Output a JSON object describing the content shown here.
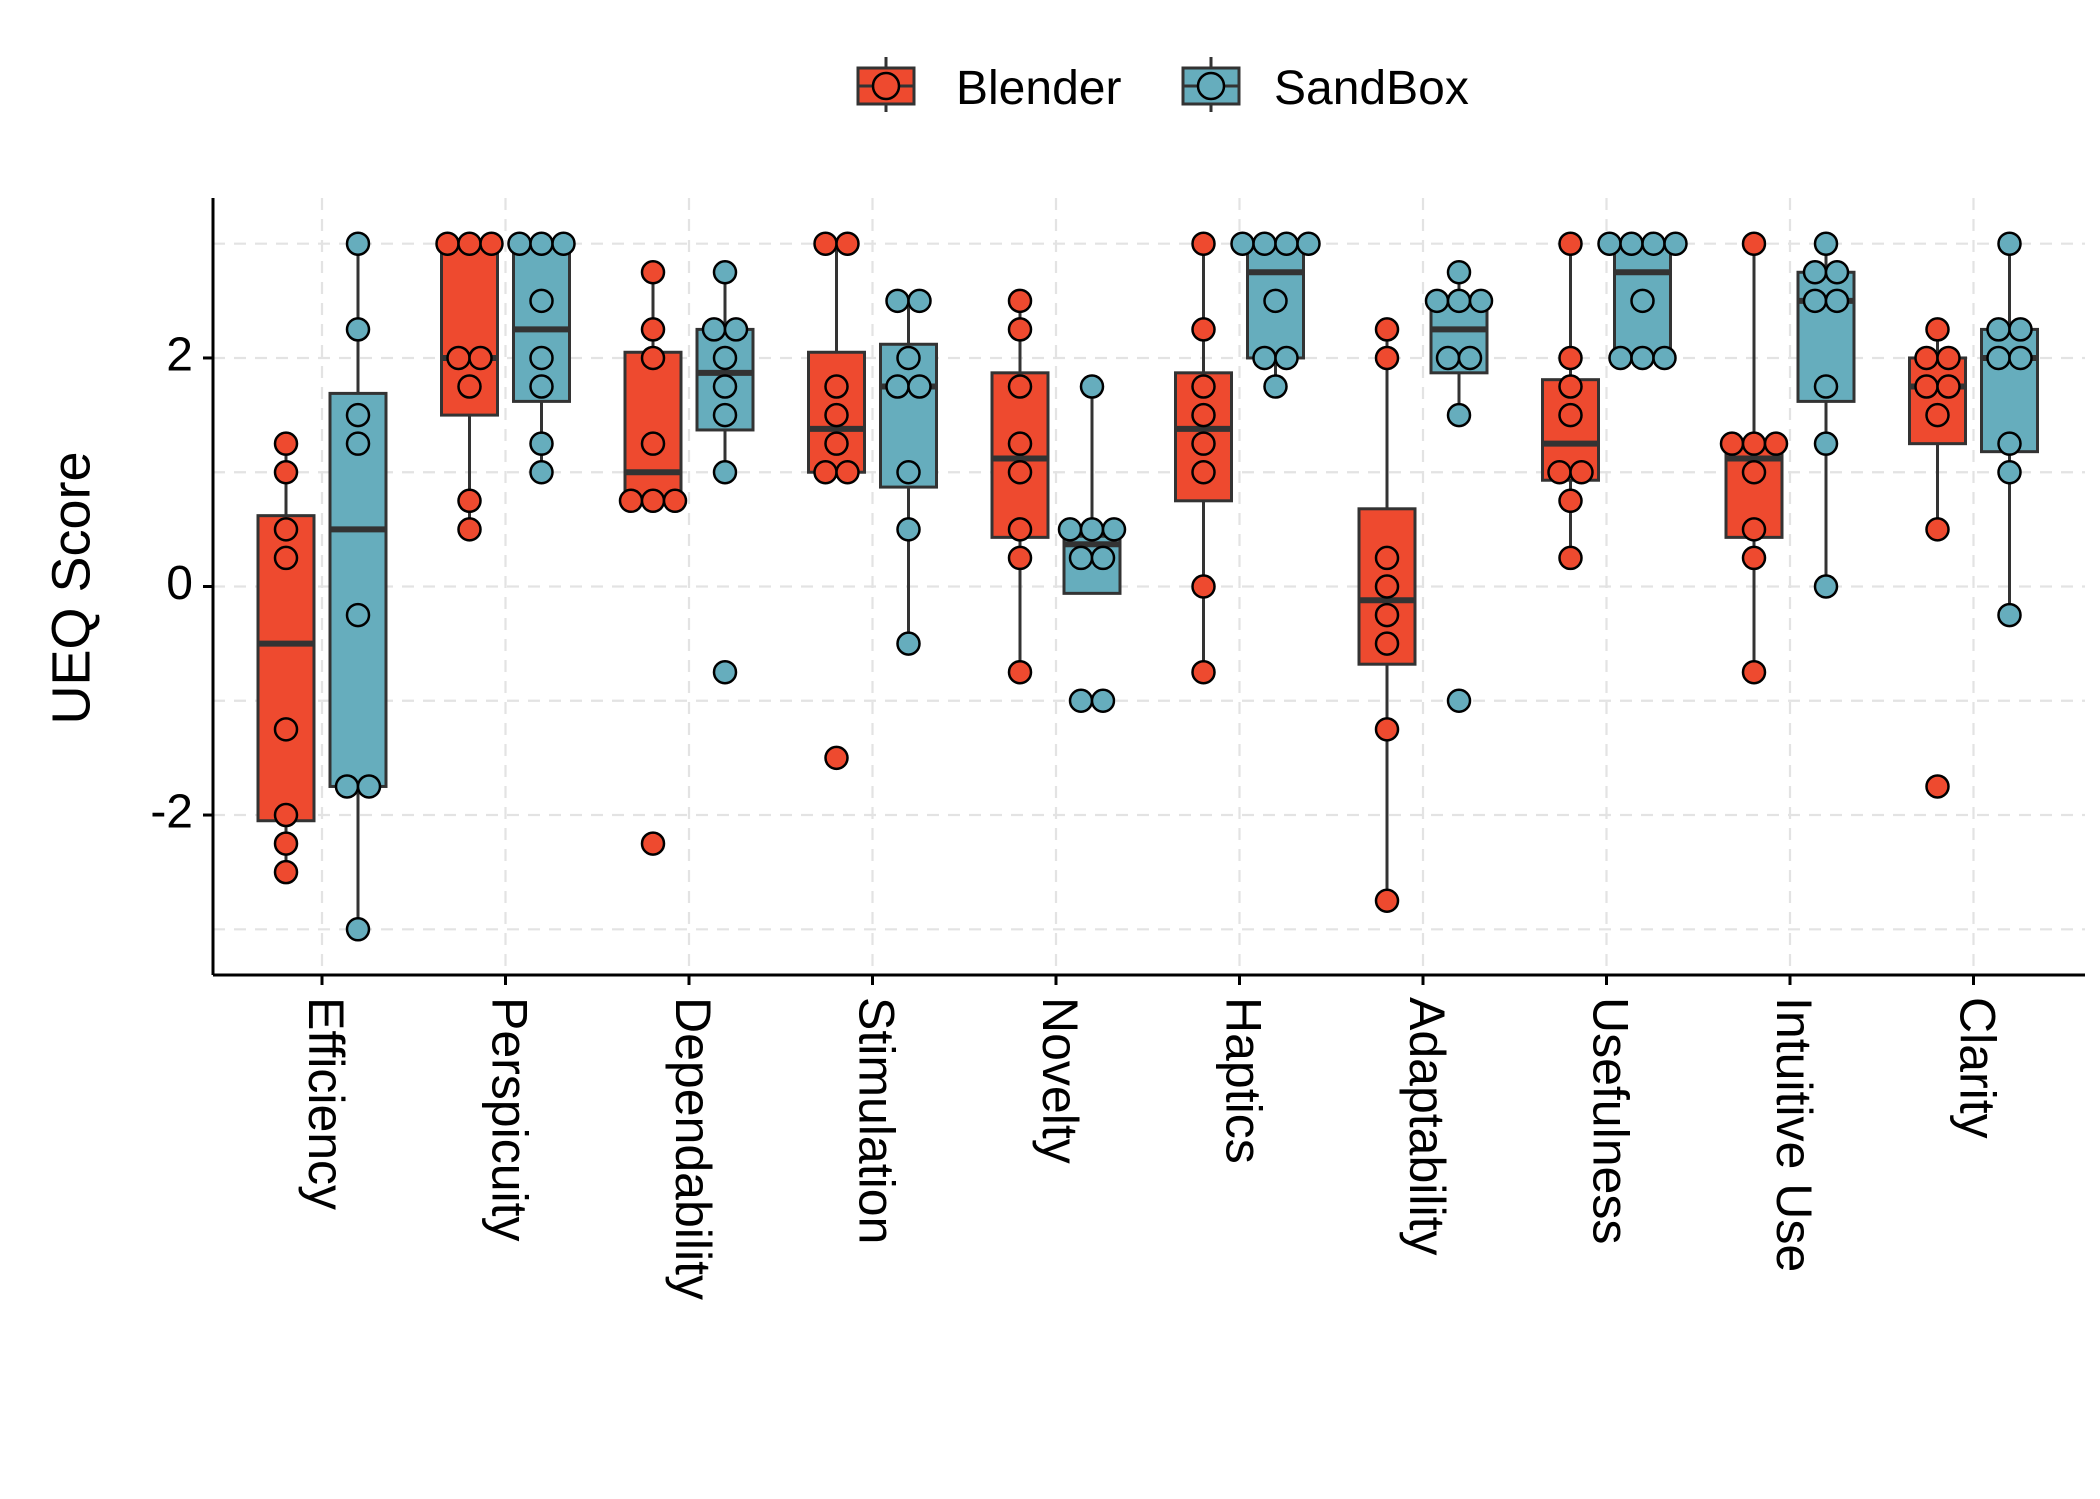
{
  "chart_data": {
    "type": "box",
    "title": "",
    "xlabel": "",
    "ylabel": "UEQ Score",
    "ylim": [
      -3.4,
      3.4
    ],
    "yticks": [
      -2,
      0,
      2
    ],
    "ytick_labels": [
      "-2",
      "0",
      "2"
    ],
    "grid": true,
    "legend_position": "top-center",
    "categories": [
      "Efficiency",
      "Perspicuity",
      "Dependability",
      "Stimulation",
      "Novelty",
      "Haptics",
      "Adaptability",
      "Usefulness",
      "Intuitive Use",
      "Clarity"
    ],
    "series": [
      {
        "name": "Blender",
        "color": "#EE4A2F",
        "boxes": [
          {
            "q1": -2.05,
            "median": -0.5,
            "q3": 0.62,
            "whisker_low": -2.5,
            "whisker_high": 1.25
          },
          {
            "q1": 1.5,
            "median": 2.0,
            "q3": 3.0,
            "whisker_low": 0.5,
            "whisker_high": 3.0
          },
          {
            "q1": 0.75,
            "median": 1.0,
            "q3": 2.05,
            "whisker_low": 0.75,
            "whisker_high": 2.75
          },
          {
            "q1": 1.0,
            "median": 1.38,
            "q3": 2.05,
            "whisker_low": 1.0,
            "whisker_high": 3.0
          },
          {
            "q1": 0.43,
            "median": 1.12,
            "q3": 1.87,
            "whisker_low": -0.75,
            "whisker_high": 2.5
          },
          {
            "q1": 0.75,
            "median": 1.38,
            "q3": 1.87,
            "whisker_low": -0.75,
            "whisker_high": 3.0
          },
          {
            "q1": -0.68,
            "median": -0.12,
            "q3": 0.68,
            "whisker_low": -2.75,
            "whisker_high": 2.25
          },
          {
            "q1": 0.93,
            "median": 1.25,
            "q3": 1.81,
            "whisker_low": 0.25,
            "whisker_high": 3.0
          },
          {
            "q1": 0.43,
            "median": 1.12,
            "q3": 1.25,
            "whisker_low": -0.75,
            "whisker_high": 3.0
          },
          {
            "q1": 1.25,
            "median": 1.75,
            "q3": 2.0,
            "whisker_low": 0.5,
            "whisker_high": 2.25
          }
        ],
        "points": [
          [
            1.25,
            1.0,
            0.5,
            0.25,
            -1.25,
            -2.0,
            -2.25,
            -2.5
          ],
          [
            3.0,
            3.0,
            3.0,
            2.0,
            2.0,
            1.75,
            0.75,
            0.5
          ],
          [
            2.75,
            2.25,
            2.0,
            1.25,
            0.75,
            0.75,
            0.75,
            -2.25
          ],
          [
            3.0,
            3.0,
            1.75,
            1.5,
            1.25,
            1.0,
            1.0,
            -1.5
          ],
          [
            2.5,
            2.25,
            1.75,
            1.25,
            1.0,
            0.5,
            0.25,
            -0.75
          ],
          [
            3.0,
            2.25,
            1.75,
            1.5,
            1.25,
            1.0,
            0.0,
            -0.75
          ],
          [
            2.25,
            2.0,
            0.25,
            0.0,
            -0.25,
            -0.5,
            -1.25,
            -2.75
          ],
          [
            3.0,
            2.0,
            1.75,
            1.5,
            1.0,
            1.0,
            0.75,
            0.25
          ],
          [
            3.0,
            1.25,
            1.25,
            1.25,
            1.0,
            0.5,
            0.25,
            -0.75
          ],
          [
            2.25,
            2.0,
            2.0,
            1.75,
            1.75,
            1.5,
            0.5,
            -1.75
          ]
        ]
      },
      {
        "name": "SandBox",
        "color": "#66ADBD",
        "boxes": [
          {
            "q1": -1.75,
            "median": 0.5,
            "q3": 1.69,
            "whisker_low": -3.0,
            "whisker_high": 3.0
          },
          {
            "q1": 1.62,
            "median": 2.25,
            "q3": 3.0,
            "whisker_low": 1.0,
            "whisker_high": 3.0
          },
          {
            "q1": 1.37,
            "median": 1.87,
            "q3": 2.25,
            "whisker_low": 1.0,
            "whisker_high": 2.75
          },
          {
            "q1": 0.87,
            "median": 1.75,
            "q3": 2.12,
            "whisker_low": -0.5,
            "whisker_high": 2.5
          },
          {
            "q1": -0.06,
            "median": 0.37,
            "q3": 0.44,
            "whisker_low": -0.06,
            "whisker_high": 1.75
          },
          {
            "q1": 2.0,
            "median": 2.75,
            "q3": 3.0,
            "whisker_low": 1.75,
            "whisker_high": 3.0
          },
          {
            "q1": 1.87,
            "median": 2.25,
            "q3": 2.5,
            "whisker_low": 1.5,
            "whisker_high": 2.75
          },
          {
            "q1": 2.0,
            "median": 2.75,
            "q3": 3.0,
            "whisker_low": 2.0,
            "whisker_high": 3.0
          },
          {
            "q1": 1.62,
            "median": 2.5,
            "q3": 2.75,
            "whisker_low": 0.0,
            "whisker_high": 3.0
          },
          {
            "q1": 1.18,
            "median": 2.0,
            "q3": 2.25,
            "whisker_low": -0.25,
            "whisker_high": 3.0
          }
        ],
        "points": [
          [
            3.0,
            2.25,
            1.5,
            1.25,
            -0.25,
            -1.75,
            -1.75,
            -3.0
          ],
          [
            3.0,
            3.0,
            3.0,
            2.5,
            2.0,
            1.75,
            1.25,
            1.0
          ],
          [
            2.75,
            2.25,
            2.25,
            2.0,
            1.75,
            1.5,
            1.0,
            -0.75
          ],
          [
            2.5,
            2.5,
            2.0,
            1.75,
            1.75,
            1.0,
            0.5,
            -0.5
          ],
          [
            1.75,
            0.5,
            0.5,
            0.5,
            0.25,
            0.25,
            -1.0,
            -1.0
          ],
          [
            3.0,
            3.0,
            3.0,
            3.0,
            2.5,
            2.0,
            2.0,
            1.75
          ],
          [
            2.75,
            2.5,
            2.5,
            2.5,
            2.0,
            2.0,
            1.5,
            -1.0
          ],
          [
            3.0,
            3.0,
            3.0,
            3.0,
            2.5,
            2.0,
            2.0,
            2.0
          ],
          [
            3.0,
            2.75,
            2.75,
            2.5,
            2.5,
            1.75,
            1.25,
            0.0
          ],
          [
            3.0,
            2.25,
            2.25,
            2.0,
            2.0,
            1.25,
            1.0,
            -0.25
          ]
        ]
      }
    ]
  }
}
